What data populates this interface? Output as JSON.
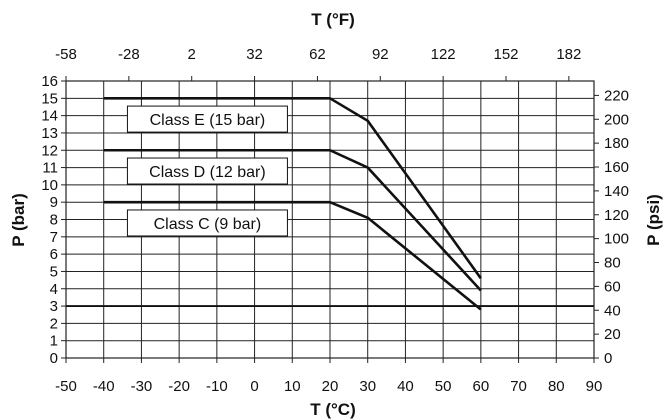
{
  "chart_data": {
    "type": "line",
    "title": "",
    "xlabel_bottom": "T (°C)",
    "xlabel_top": "T (°F)",
    "ylabel_left": "P (bar)",
    "ylabel_right": "P (psi)",
    "xlim": [
      -50,
      90
    ],
    "ylim": [
      0,
      16
    ],
    "grid": true,
    "bottom_ticks": [
      "-50",
      "-40",
      "-30",
      "-20",
      "-10",
      "0",
      "10",
      "20",
      "30",
      "40",
      "50",
      "60",
      "70",
      "80",
      "90"
    ],
    "bottom_tick_values": [
      -50,
      -40,
      -30,
      -20,
      -10,
      0,
      10,
      20,
      30,
      40,
      50,
      60,
      70,
      80,
      90
    ],
    "top_ticks": [
      "-58",
      "-28",
      "2",
      "32",
      "62",
      "92",
      "122",
      "152",
      "182"
    ],
    "top_tick_values": [
      -58,
      -28,
      2,
      32,
      62,
      92,
      122,
      152,
      182
    ],
    "left_ticks": [
      "0",
      "1",
      "2",
      "3",
      "4",
      "5",
      "6",
      "7",
      "8",
      "9",
      "10",
      "11",
      "12",
      "13",
      "14",
      "15",
      "16"
    ],
    "left_tick_values": [
      0,
      1,
      2,
      3,
      4,
      5,
      6,
      7,
      8,
      9,
      10,
      11,
      12,
      13,
      14,
      15,
      16
    ],
    "right_ticks": [
      "0",
      "20",
      "40",
      "60",
      "80",
      "100",
      "120",
      "140",
      "160",
      "180",
      "200",
      "220"
    ],
    "right_tick_values": [
      0,
      20,
      40,
      60,
      80,
      100,
      120,
      140,
      160,
      180,
      200,
      220
    ],
    "series": [
      {
        "name": "Class E (15 bar)",
        "x": [
          -40,
          20,
          30,
          60
        ],
        "y": [
          15,
          15,
          13.7,
          4.6
        ]
      },
      {
        "name": "Class D (12 bar)",
        "x": [
          -40,
          20,
          30,
          60
        ],
        "y": [
          12,
          12,
          11,
          3.9
        ]
      },
      {
        "name": "Class C (9 bar)",
        "x": [
          -40,
          20,
          30,
          60
        ],
        "y": [
          9,
          9,
          8.1,
          2.8
        ]
      },
      {
        "name": "",
        "x": [
          -50,
          90
        ],
        "y": [
          3,
          3
        ]
      }
    ],
    "line_color": "#111111",
    "grid_color": "#222222"
  }
}
